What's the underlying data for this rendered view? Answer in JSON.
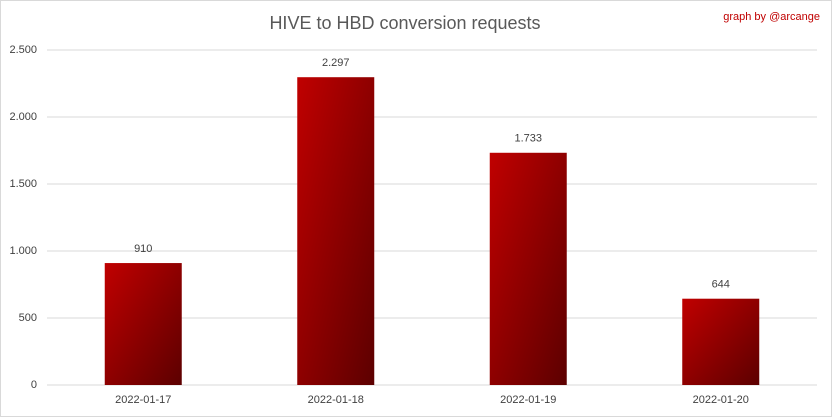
{
  "chart_data": {
    "type": "bar",
    "title": "HIVE to HBD conversion requests",
    "annotation": "graph by @arcange",
    "categories": [
      "2022-01-17",
      "2022-01-18",
      "2022-01-19",
      "2022-01-20"
    ],
    "values": [
      910,
      2297,
      1733,
      644
    ],
    "value_labels": [
      "910",
      "2.297",
      "1.733",
      "644"
    ],
    "color": "#c00000",
    "ylim": [
      0,
      2500
    ],
    "yticks": [
      0,
      500,
      {
        "value": 1000,
        "label": "1.000"
      },
      {
        "value": 1500,
        "label": "1.500"
      },
      {
        "value": 2000,
        "label": "2.000"
      },
      {
        "value": 2500,
        "label": "2.500"
      }
    ],
    "grid": true
  }
}
